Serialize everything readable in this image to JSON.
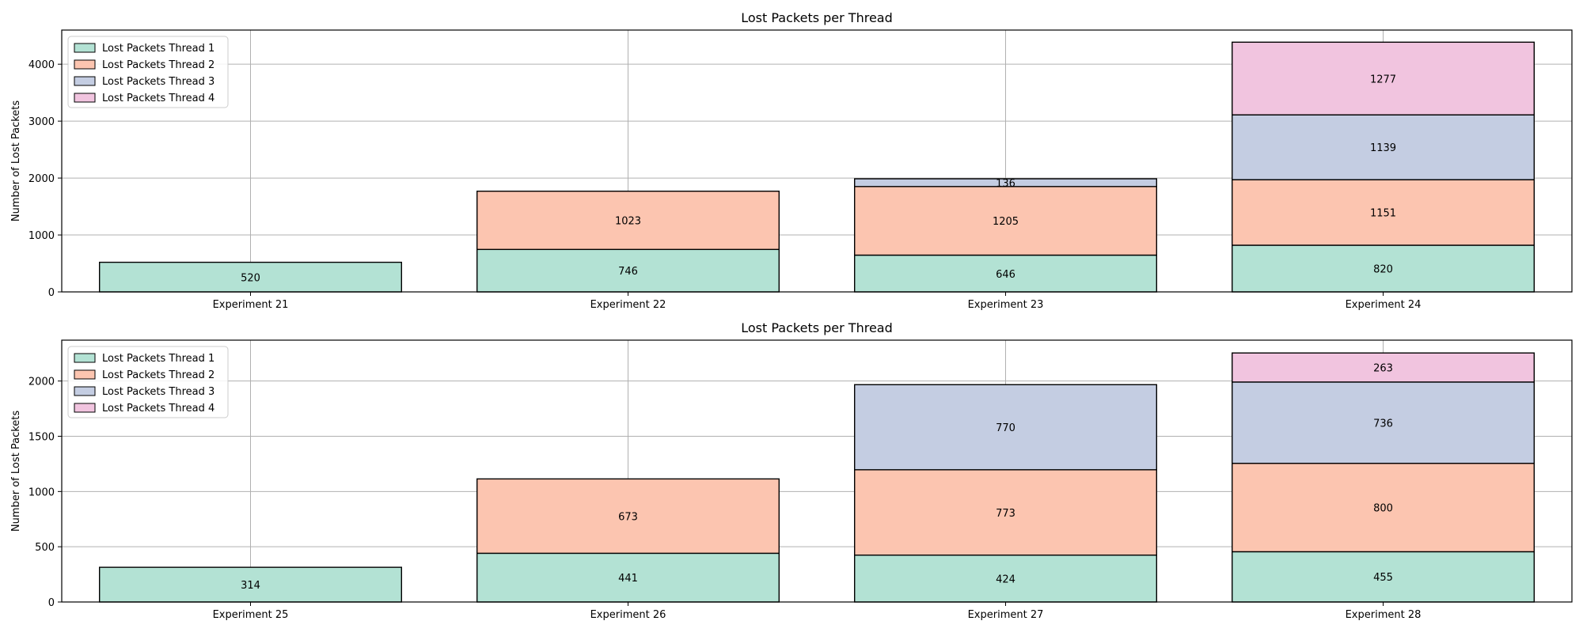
{
  "chart_data": [
    {
      "type": "bar",
      "stacked": true,
      "title": "Lost Packets per Thread",
      "xlabel": "",
      "ylabel": "Number of Lost Packets",
      "categories": [
        "Experiment 21",
        "Experiment 22",
        "Experiment 23",
        "Experiment 24"
      ],
      "ylim": [
        0,
        4600
      ],
      "yticks": [
        0,
        1000,
        2000,
        3000,
        4000
      ],
      "grid": true,
      "legend_position": "top-left",
      "series": [
        {
          "name": "Lost Packets Thread 1",
          "color": "#b3e2d4",
          "values": [
            520,
            746,
            646,
            820
          ]
        },
        {
          "name": "Lost Packets Thread 2",
          "color": "#fcc5b0",
          "values": [
            0,
            1023,
            1205,
            1151
          ]
        },
        {
          "name": "Lost Packets Thread 3",
          "color": "#c4cde2",
          "values": [
            0,
            0,
            136,
            1139
          ]
        },
        {
          "name": "Lost Packets Thread 4",
          "color": "#f1c4df",
          "values": [
            0,
            0,
            0,
            1277
          ]
        }
      ]
    },
    {
      "type": "bar",
      "stacked": true,
      "title": "Lost Packets per Thread",
      "xlabel": "",
      "ylabel": "Number of Lost Packets",
      "categories": [
        "Experiment 25",
        "Experiment 26",
        "Experiment 27",
        "Experiment 28"
      ],
      "ylim": [
        0,
        2370
      ],
      "yticks": [
        0,
        500,
        1000,
        1500,
        2000
      ],
      "grid": true,
      "legend_position": "top-left",
      "series": [
        {
          "name": "Lost Packets Thread 1",
          "color": "#b3e2d4",
          "values": [
            314,
            441,
            424,
            455
          ]
        },
        {
          "name": "Lost Packets Thread 2",
          "color": "#fcc5b0",
          "values": [
            0,
            673,
            773,
            800
          ]
        },
        {
          "name": "Lost Packets Thread 3",
          "color": "#c4cde2",
          "values": [
            0,
            0,
            770,
            736
          ]
        },
        {
          "name": "Lost Packets Thread 4",
          "color": "#f1c4df",
          "values": [
            0,
            0,
            0,
            263
          ]
        }
      ]
    }
  ]
}
